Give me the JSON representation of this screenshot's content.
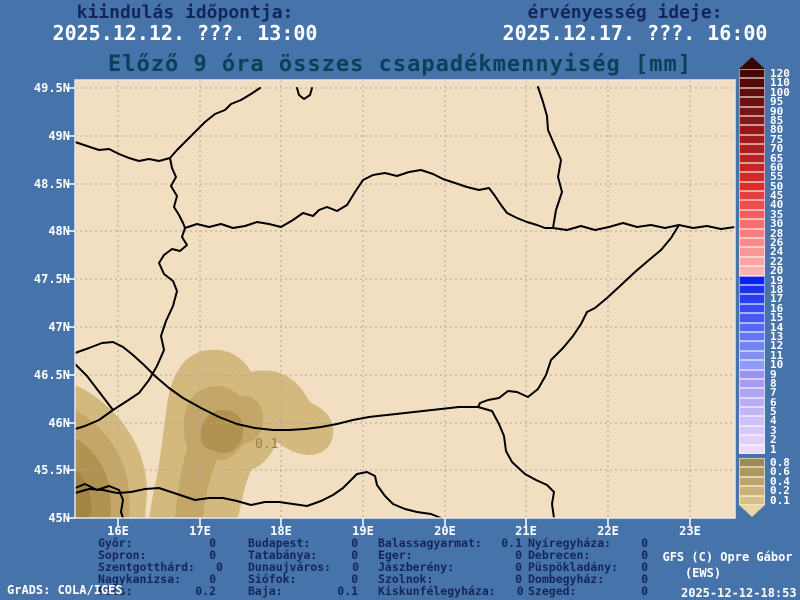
{
  "header": {
    "origin_label": "kiindulás időpontja:",
    "origin_value": "2025.12.12. ???. 13:00",
    "valid_label": "érvényesség ideje:",
    "valid_value": "2025.12.17. ???. 16:00"
  },
  "title": "Előző 9 óra összes csapadékmennyiség [mm]",
  "map": {
    "lat_labels": [
      "49.5N",
      "49N",
      "48.5N",
      "48N",
      "47.5N",
      "47N",
      "46.5N",
      "46N",
      "45.5N",
      "45N"
    ],
    "lon_labels": [
      "16E",
      "17E",
      "18E",
      "19E",
      "20E",
      "21E",
      "22E",
      "23E"
    ],
    "contour_label": "0.1"
  },
  "colorbar": {
    "levels": [
      {
        "v": "120",
        "c": "#470707"
      },
      {
        "v": "110",
        "c": "#540a0a"
      },
      {
        "v": "100",
        "c": "#610d0d"
      },
      {
        "v": "95",
        "c": "#6d1010"
      },
      {
        "v": "90",
        "c": "#7a1313"
      },
      {
        "v": "85",
        "c": "#871616"
      },
      {
        "v": "80",
        "c": "#931919"
      },
      {
        "v": "75",
        "c": "#a01c1c"
      },
      {
        "v": "70",
        "c": "#ad1f1f"
      },
      {
        "v": "65",
        "c": "#b92222"
      },
      {
        "v": "60",
        "c": "#c62525"
      },
      {
        "v": "55",
        "c": "#d32828"
      },
      {
        "v": "50",
        "c": "#e02b2b"
      },
      {
        "v": "45",
        "c": "#e83c3c"
      },
      {
        "v": "40",
        "c": "#ed4d4d"
      },
      {
        "v": "35",
        "c": "#f15e5e"
      },
      {
        "v": "30",
        "c": "#f56f6f"
      },
      {
        "v": "28",
        "c": "#f77d7d"
      },
      {
        "v": "26",
        "c": "#f98a8a"
      },
      {
        "v": "24",
        "c": "#fa9797"
      },
      {
        "v": "22",
        "c": "#fca4a4"
      },
      {
        "v": "20",
        "c": "#feb1b1"
      },
      {
        "v": "19",
        "c": "#0a21ee"
      },
      {
        "v": "18",
        "c": "#1930ef"
      },
      {
        "v": "17",
        "c": "#283ef0"
      },
      {
        "v": "16",
        "c": "#374cf1"
      },
      {
        "v": "15",
        "c": "#465af2"
      },
      {
        "v": "14",
        "c": "#5568f3"
      },
      {
        "v": "13",
        "c": "#6476f4"
      },
      {
        "v": "12",
        "c": "#7384f5"
      },
      {
        "v": "11",
        "c": "#8290f6"
      },
      {
        "v": "10",
        "c": "#8f9cf7"
      },
      {
        "v": "9",
        "c": "#9b92f3"
      },
      {
        "v": "8",
        "c": "#a59bf4"
      },
      {
        "v": "7",
        "c": "#afa4f5"
      },
      {
        "v": "6",
        "c": "#b9adf6"
      },
      {
        "v": "5",
        "c": "#c3b6f7"
      },
      {
        "v": "4",
        "c": "#cdbff8"
      },
      {
        "v": "3",
        "c": "#d7c8f9"
      },
      {
        "v": "2",
        "c": "#e1d1fa"
      },
      {
        "v": "1",
        "c": "#ebdafb"
      },
      {
        "v": "0.8",
        "c": "#9c8a50",
        "gap": true
      },
      {
        "v": "0.6",
        "c": "#ab985d"
      },
      {
        "v": "0.4",
        "c": "#bba56b"
      },
      {
        "v": "0.2",
        "c": "#cab278"
      },
      {
        "v": "0.1",
        "c": "#dabf86"
      }
    ]
  },
  "stations": {
    "columns": [
      [
        {
          "name": "Győr:",
          "value": "0"
        },
        {
          "name": "Sopron:",
          "value": "0"
        },
        {
          "name": "Szentgotthárd:",
          "value": "0"
        },
        {
          "name": "Nagykanizsa:",
          "value": "0"
        },
        {
          "name": "Pécs:",
          "value": "0.2"
        }
      ],
      [
        {
          "name": "Budapest:",
          "value": "0"
        },
        {
          "name": "Tatabánya:",
          "value": "0"
        },
        {
          "name": "Dunaujváros:",
          "value": "0"
        },
        {
          "name": "Siófok:",
          "value": "0"
        },
        {
          "name": "Baja:",
          "value": "0.1"
        }
      ],
      [
        {
          "name": "Balassagyarmat:",
          "value": "0.1"
        },
        {
          "name": "Eger:",
          "value": "0"
        },
        {
          "name": "Jászberény:",
          "value": "0"
        },
        {
          "name": "Szolnok:",
          "value": "0"
        },
        {
          "name": "Kiskunfélegyháza:",
          "value": "0"
        }
      ],
      [
        {
          "name": "Nyíregyháza:",
          "value": "0"
        },
        {
          "name": "Debrecen:",
          "value": "0"
        },
        {
          "name": "Püspökladány:",
          "value": "0"
        },
        {
          "name": "Dombegyház:",
          "value": "0"
        },
        {
          "name": "Szeged:",
          "value": "0"
        }
      ]
    ]
  },
  "credits": {
    "model": "GFS (C) Opre Gábor",
    "org": "(EWS)",
    "timestamp": "2025-12-12-18:53",
    "grads": "GrADS: COLA/IGES"
  },
  "colors": {
    "page_background": "#4673aa",
    "land": "#f2dfc2",
    "header_label": "#13265c",
    "header_value": "#ffffff",
    "title": "#0d3e5a",
    "shade_01": "#d4b97f",
    "shade_02": "#c3a668",
    "shade_04": "#b19251",
    "shade_06": "#a08544",
    "border_line": "#000000",
    "grid_line": "#a9a9a9"
  }
}
